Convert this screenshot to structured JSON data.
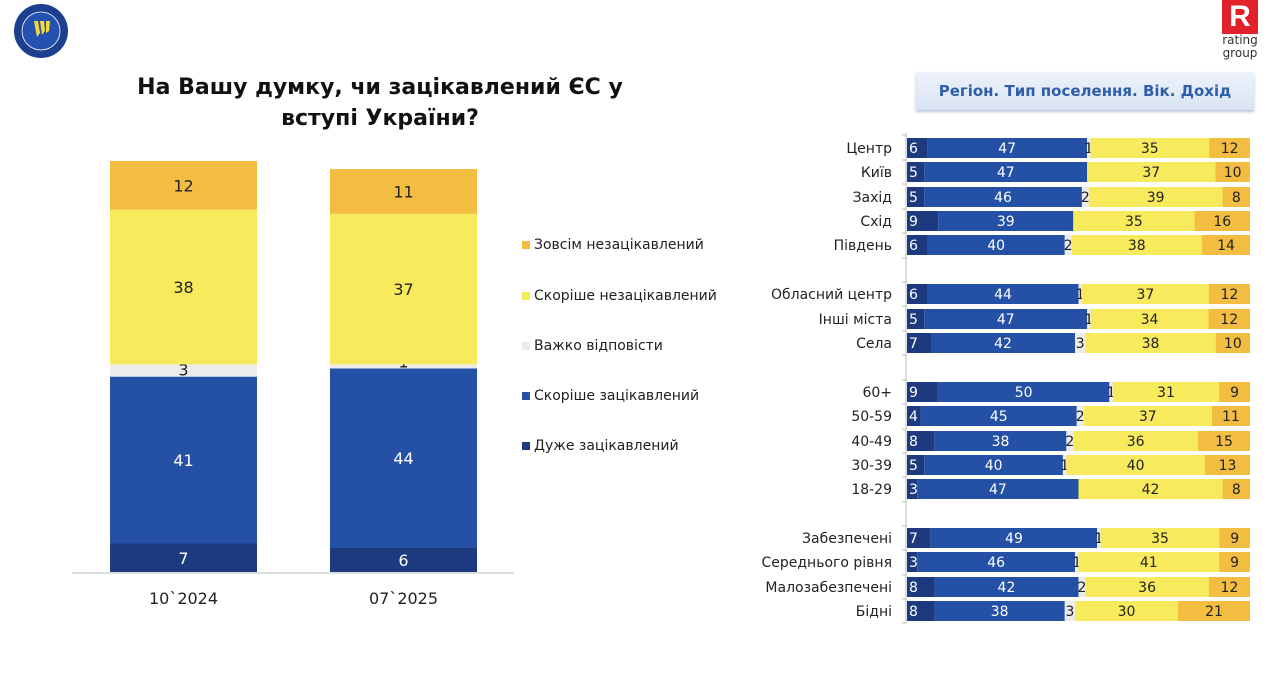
{
  "title": "На Вашу думку, чи зацікавлений ЄС у вступі України?",
  "header_box": "Регіон. Тип поселення. Вік. Дохід",
  "logos": {
    "left": "EUAM UKRAINE",
    "right": "rating group"
  },
  "colors": {
    "very": "#1c3a7d",
    "rather": "#2450a6",
    "dk": "#ececec",
    "rather_not": "#f7ea5c",
    "not_at_all": "#f2bd40"
  },
  "legend": [
    "Зовсім незацікавлений",
    "Скоріше незацікавлений",
    "Важко відповісти",
    "Скоріше зацікавлений",
    "Дуже зацікавлений"
  ],
  "chart_data": [
    {
      "type": "bar",
      "stacked": true,
      "orientation": "vertical",
      "categories": [
        "10`2024",
        "07`2025"
      ],
      "series": [
        {
          "name": "Дуже зацікавлений",
          "values": [
            7,
            6
          ]
        },
        {
          "name": "Скоріше зацікавлений",
          "values": [
            41,
            44
          ]
        },
        {
          "name": "Важко відповісти",
          "values": [
            3,
            1
          ]
        },
        {
          "name": "Скоріше незацікавлений",
          "values": [
            38,
            37
          ]
        },
        {
          "name": "Зовсім незацікавлений",
          "values": [
            12,
            11
          ]
        }
      ],
      "ylim": [
        0,
        100
      ],
      "legend_position": "right"
    },
    {
      "type": "bar",
      "stacked": true,
      "orientation": "horizontal",
      "title": "Регіон. Тип поселення. Вік. Дохід",
      "groups": [
        [
          "Центр",
          "Київ",
          "Захід",
          "Схід",
          "Південь"
        ],
        [
          "Обласний центр",
          "Інші міста",
          "Села"
        ],
        [
          "60+",
          "50-59",
          "40-49",
          "30-39",
          "18-29"
        ],
        [
          "Забезпечені",
          "Середнього рівня",
          "Малозабезпечені",
          "Бідні"
        ]
      ],
      "rows": [
        {
          "label": "Центр",
          "values": [
            6,
            47,
            1,
            35,
            12
          ]
        },
        {
          "label": "Київ",
          "values": [
            5,
            47,
            null,
            37,
            10
          ]
        },
        {
          "label": "Захід",
          "values": [
            5,
            46,
            2,
            39,
            8
          ]
        },
        {
          "label": "Схід",
          "values": [
            9,
            39,
            null,
            35,
            16
          ]
        },
        {
          "label": "Південь",
          "values": [
            6,
            40,
            2,
            38,
            14
          ]
        },
        {
          "label": "Обласний центр",
          "values": [
            6,
            44,
            1,
            37,
            12
          ]
        },
        {
          "label": "Інші міста",
          "values": [
            5,
            47,
            1,
            34,
            12
          ]
        },
        {
          "label": "Села",
          "values": [
            7,
            42,
            3,
            38,
            10
          ]
        },
        {
          "label": "60+",
          "values": [
            9,
            50,
            1,
            31,
            9
          ]
        },
        {
          "label": "50-59",
          "values": [
            4,
            45,
            2,
            37,
            11
          ]
        },
        {
          "label": "40-49",
          "values": [
            8,
            38,
            2,
            36,
            15
          ]
        },
        {
          "label": "30-39",
          "values": [
            5,
            40,
            1,
            40,
            13
          ]
        },
        {
          "label": "18-29",
          "values": [
            3,
            47,
            null,
            42,
            8
          ]
        },
        {
          "label": "Забезпечені",
          "values": [
            7,
            49,
            1,
            35,
            9
          ]
        },
        {
          "label": "Середнього рівня",
          "values": [
            3,
            46,
            1,
            41,
            9
          ]
        },
        {
          "label": "Малозабезпечені",
          "values": [
            8,
            42,
            2,
            36,
            12
          ]
        },
        {
          "label": "Бідні",
          "values": [
            8,
            38,
            3,
            30,
            21
          ]
        }
      ],
      "series_order": [
        "Дуже зацікавлений",
        "Скоріше зацікавлений",
        "Важко відповісти",
        "Скоріше незацікавлений",
        "Зовсім незацікавлений"
      ]
    }
  ]
}
